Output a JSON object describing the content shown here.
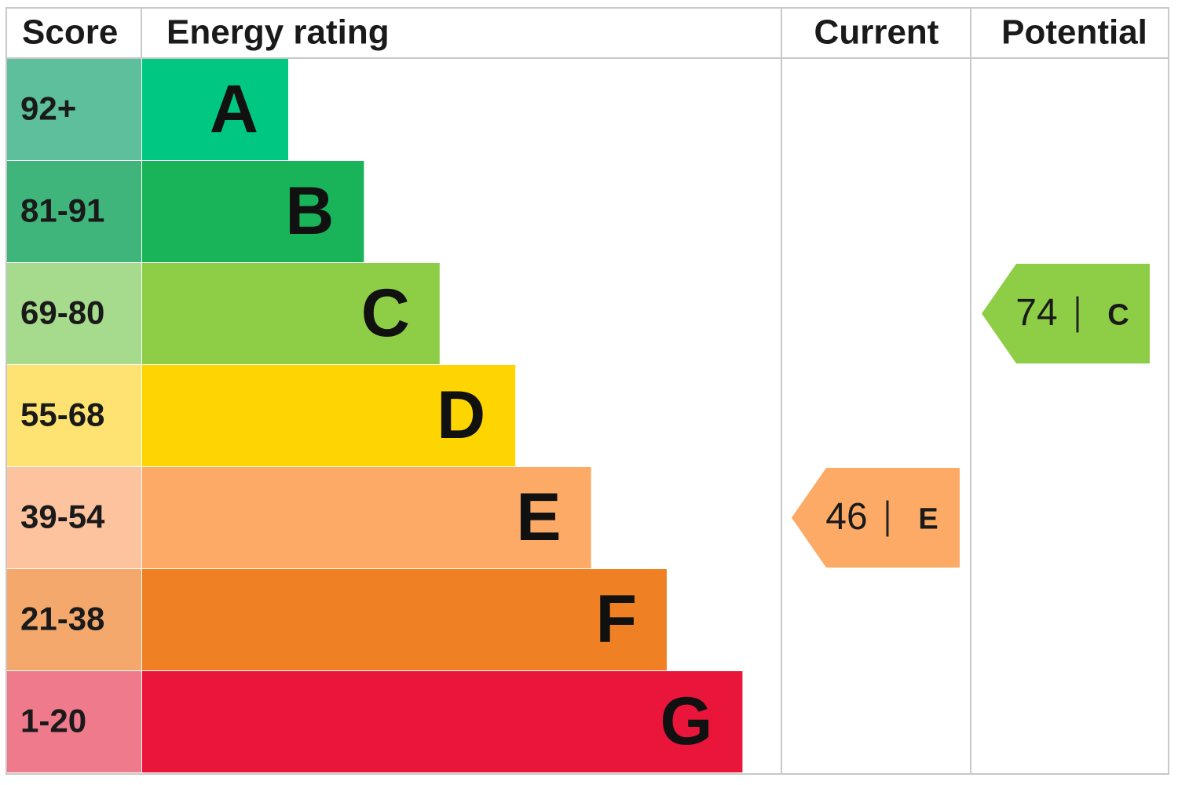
{
  "header": {
    "score": "Score",
    "rating": "Energy rating",
    "current": "Current",
    "potential": "Potential"
  },
  "bands": [
    {
      "score": "92+",
      "letter": "A",
      "score_color": "#5dbf9c",
      "color": "#00c781"
    },
    {
      "score": "81-91",
      "letter": "B",
      "score_color": "#40b57b",
      "color": "#19b459"
    },
    {
      "score": "69-80",
      "letter": "C",
      "score_color": "#a6da8c",
      "color": "#8dce46"
    },
    {
      "score": "55-68",
      "letter": "D",
      "score_color": "#ffe372",
      "color": "#ffd500"
    },
    {
      "score": "39-54",
      "letter": "E",
      "score_color": "#fdc39f",
      "color": "#fcaa65"
    },
    {
      "score": "21-38",
      "letter": "F",
      "score_color": "#f4a86b",
      "color": "#ef8023"
    },
    {
      "score": "1-20",
      "letter": "G",
      "score_color": "#ee7a8b",
      "color": "#e9153b"
    }
  ],
  "current": {
    "value": 46,
    "letter": "E"
  },
  "potential": {
    "value": 74,
    "letter": "C"
  }
}
